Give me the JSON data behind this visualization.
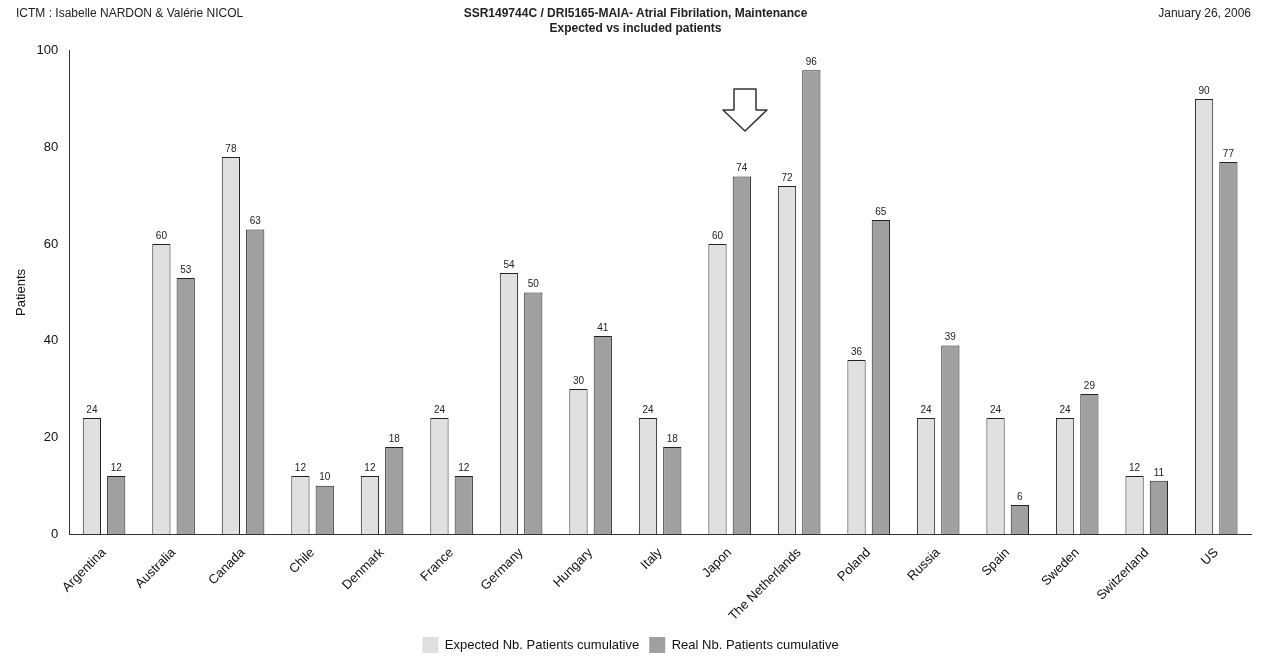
{
  "chart_data": {
    "type": "bar",
    "title": "SSR149744C / DRI5165-MAIA- Atrial Fibrilation, Maintenance",
    "subtitle": "Expected vs included patients",
    "ylabel": "Patients",
    "annotations": [
      "ICTM : Isabelle NARDON & Valérie NICOL",
      "January 26, 2006"
    ],
    "categories": [
      "Argentina",
      "Australia",
      "Canada",
      "Chile",
      "Denmark",
      "France",
      "Germany",
      "Hungary",
      "Italy",
      "Japon",
      "The Netherlands",
      "Poland",
      "Russia",
      "Spain",
      "Sweden",
      "Switzerland",
      "US"
    ],
    "series": [
      {
        "name": "Expected Nb. Patients cumulative",
        "color": "#e0e0e0",
        "values": [
          24,
          60,
          78,
          12,
          12,
          24,
          54,
          30,
          24,
          60,
          72,
          36,
          24,
          24,
          24,
          12,
          90
        ]
      },
      {
        "name": "Real Nb. Patients cumulative",
        "color": "#a0a0a0",
        "values": [
          12,
          53,
          63,
          10,
          18,
          12,
          50,
          41,
          18,
          74,
          96,
          65,
          39,
          6,
          29,
          11,
          77
        ]
      }
    ],
    "ylim": [
      0,
      100
    ],
    "yticks": [
      0,
      20,
      40,
      60,
      80,
      100
    ],
    "grid": false,
    "legend": "bottom",
    "data_labels": true
  }
}
